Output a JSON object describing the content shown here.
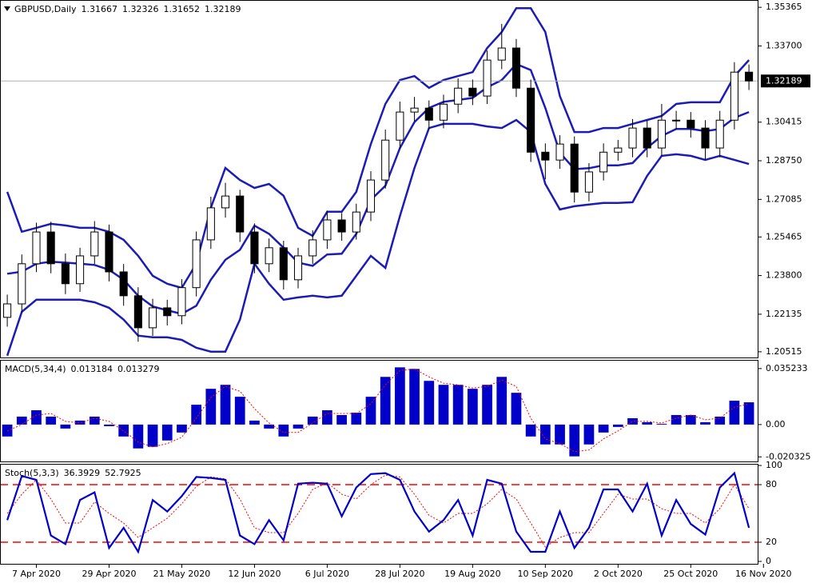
{
  "chart_data": [
    {
      "type": "candlestick",
      "title": "GBPUSD,Daily",
      "header_values": [
        1.31667,
        1.32326,
        1.31652,
        1.32189
      ],
      "open": [
        1.22,
        1.2258,
        1.2431,
        1.2568,
        1.2431,
        1.2345,
        1.2465,
        1.2568,
        1.2396,
        1.2293,
        1.2155,
        1.2241,
        1.2207,
        1.2328,
        1.2534,
        1.2672,
        1.2723,
        1.2568,
        1.2431,
        1.25,
        1.2362,
        1.2465,
        1.2534,
        1.262,
        1.2568,
        1.2654,
        1.2792,
        1.2964,
        1.3085,
        1.3102,
        1.305,
        1.3119,
        1.3188,
        1.3154,
        1.3309,
        1.3361,
        1.3188,
        1.2912,
        1.2878,
        1.2947,
        1.274,
        1.2827,
        1.2912,
        1.293,
        1.3016,
        1.293,
        1.305,
        1.305,
        1.3016,
        1.293,
        1.305,
        1.3257
      ],
      "high": [
        1.2298,
        1.2471,
        1.2608,
        1.2612,
        1.2475,
        1.25,
        1.2615,
        1.26,
        1.243,
        1.233,
        1.228,
        1.2276,
        1.2365,
        1.257,
        1.272,
        1.278,
        1.275,
        1.2605,
        1.254,
        1.253,
        1.25,
        1.2575,
        1.266,
        1.265,
        1.269,
        1.283,
        1.301,
        1.313,
        1.315,
        1.3135,
        1.316,
        1.323,
        1.3225,
        1.335,
        1.3465,
        1.34,
        1.3225,
        1.295,
        1.2985,
        1.298,
        1.2865,
        1.295,
        1.2965,
        1.3055,
        1.305,
        1.312,
        1.309,
        1.3085,
        1.305,
        1.309,
        1.33,
        1.329
      ],
      "low": [
        1.216,
        1.222,
        1.2395,
        1.239,
        1.23,
        1.231,
        1.243,
        1.2355,
        1.225,
        1.2095,
        1.212,
        1.2165,
        1.217,
        1.229,
        1.2495,
        1.263,
        1.2525,
        1.239,
        1.2395,
        1.232,
        1.2325,
        1.243,
        1.2495,
        1.253,
        1.2535,
        1.2615,
        1.2755,
        1.2925,
        1.3045,
        1.301,
        1.3015,
        1.308,
        1.3115,
        1.312,
        1.327,
        1.315,
        1.287,
        1.2795,
        1.284,
        1.2695,
        1.27,
        1.279,
        1.2875,
        1.289,
        1.289,
        1.2895,
        1.301,
        1.2975,
        1.288,
        1.289,
        1.301,
        1.318
      ],
      "close": [
        1.2258,
        1.2431,
        1.2568,
        1.2431,
        1.2345,
        1.2465,
        1.2568,
        1.2396,
        1.2293,
        1.2155,
        1.2241,
        1.2207,
        1.2328,
        1.2534,
        1.2672,
        1.2723,
        1.2568,
        1.2431,
        1.25,
        1.2362,
        1.2465,
        1.2534,
        1.262,
        1.2568,
        1.2654,
        1.2792,
        1.2964,
        1.3085,
        1.3102,
        1.305,
        1.3119,
        1.3188,
        1.3154,
        1.3309,
        1.3361,
        1.3188,
        1.2912,
        1.2878,
        1.2947,
        1.274,
        1.2827,
        1.2912,
        1.293,
        1.3016,
        1.293,
        1.305,
        1.305,
        1.3016,
        1.293,
        1.305,
        1.3257,
        1.3219
      ],
      "up_color": "#ffffff",
      "down_color": "#000000",
      "bands": {
        "color": "#1c1cb4",
        "upper": [
          1.2741,
          1.2569,
          1.2586,
          1.2603,
          1.2596,
          1.2586,
          1.2586,
          1.2569,
          1.2534,
          1.2465,
          1.2379,
          1.2345,
          1.2327,
          1.2431,
          1.2672,
          1.2844,
          1.2792,
          1.2758,
          1.2775,
          1.2724,
          1.2586,
          1.2551,
          1.2655,
          1.2655,
          1.2741,
          1.2947,
          1.312,
          1.3223,
          1.324,
          1.3189,
          1.3223,
          1.324,
          1.3257,
          1.3361,
          1.343,
          1.3533,
          1.3533,
          1.343,
          1.3154,
          1.2999,
          1.2999,
          1.3016,
          1.3016,
          1.3034,
          1.3051,
          1.3068,
          1.312,
          1.3127,
          1.3127,
          1.3127,
          1.324,
          1.3309
        ],
        "middle": [
          1.2388,
          1.2397,
          1.2431,
          1.244,
          1.2436,
          1.2431,
          1.2426,
          1.2405,
          1.2362,
          1.2293,
          1.2247,
          1.223,
          1.2215,
          1.225,
          1.2362,
          1.2448,
          1.2491,
          1.2595,
          1.256,
          1.25,
          1.2436,
          1.2422,
          1.2471,
          1.2474,
          1.256,
          1.2706,
          1.2767,
          1.293,
          1.3042,
          1.3103,
          1.3129,
          1.3137,
          1.3146,
          1.3192,
          1.3223,
          1.3292,
          1.3266,
          1.3103,
          1.291,
          1.2839,
          1.2843,
          1.2855,
          1.2855,
          1.2865,
          1.2931,
          1.2982,
          1.3012,
          1.3012,
          1.3003,
          1.3012,
          1.306,
          1.3085
        ],
        "lower": [
          1.2035,
          1.2224,
          1.2276,
          1.2276,
          1.2276,
          1.2276,
          1.2265,
          1.2241,
          1.219,
          1.2121,
          1.2114,
          1.2114,
          1.2103,
          1.2069,
          1.2052,
          1.2052,
          1.219,
          1.2431,
          1.2345,
          1.2276,
          1.2286,
          1.2293,
          1.2286,
          1.2293,
          1.2379,
          1.2465,
          1.2413,
          1.2637,
          1.2844,
          1.3016,
          1.3034,
          1.3034,
          1.3034,
          1.3023,
          1.3016,
          1.3051,
          1.2999,
          1.2775,
          1.2665,
          1.2679,
          1.2686,
          1.2693,
          1.2693,
          1.2696,
          1.281,
          1.2896,
          1.2903,
          1.2896,
          1.2879,
          1.2896,
          1.2879,
          1.2861
        ]
      },
      "price_line": 1.32189,
      "xlim": [
        -0.5,
        51.6
      ],
      "ylim": [
        1.2027,
        1.3568
      ],
      "yticks": [
        1.35365,
        {
          "value": 1.337,
          "label": "1.33700"
        },
        1.30415,
        {
          "value": 1.2875,
          "label": "1.28750"
        },
        1.27085,
        1.25465,
        {
          "value": 1.238,
          "label": "1.23800"
        },
        1.22135,
        1.20515
      ]
    },
    {
      "type": "macd",
      "title": "MACD(5,34,4)",
      "header_values": [
        0.013184,
        0.013279
      ],
      "values": [
        -0.0075,
        0.005,
        0.009,
        0.005,
        -0.0025,
        0.0025,
        0.005,
        -0.001,
        -0.0075,
        -0.015,
        -0.014,
        -0.01,
        -0.005,
        0.0125,
        0.0225,
        0.025,
        0.0175,
        0.0025,
        -0.0025,
        -0.0075,
        -0.0025,
        0.005,
        0.009,
        0.006,
        0.0075,
        0.0175,
        0.03,
        0.036,
        0.035,
        0.0275,
        0.025,
        0.025,
        0.0225,
        0.025,
        0.03,
        0.02,
        -0.0075,
        -0.0125,
        -0.0125,
        -0.02,
        -0.0125,
        -0.005,
        -0.0015,
        0.004,
        0.0015,
        0.0005,
        0.006,
        0.006,
        0.0015,
        0.005,
        0.015,
        0.014
      ],
      "color": "#0000c8",
      "signal": [
        -0.004,
        0.0,
        0.006,
        0.007,
        0.002,
        0.001,
        0.004,
        0.002,
        -0.004,
        -0.011,
        -0.014,
        -0.012,
        -0.008,
        0.004,
        0.017,
        0.024,
        0.021,
        0.01,
        0.001,
        -0.005,
        -0.005,
        0.001,
        0.007,
        0.007,
        0.007,
        0.013,
        0.025,
        0.034,
        0.035,
        0.03,
        0.026,
        0.025,
        0.023,
        0.024,
        0.028,
        0.024,
        0.004,
        -0.009,
        -0.012,
        -0.017,
        -0.016,
        -0.009,
        -0.004,
        0.002,
        0.002,
        0.001,
        0.004,
        0.006,
        0.003,
        0.004,
        0.011,
        0.013
      ],
      "signal_color": "#ff0000",
      "xlim": [
        -0.5,
        51.6
      ],
      "ylim": [
        -0.0232,
        0.0407
      ],
      "yticks": [
        0.035233,
        {
          "value": 0,
          "label": "0.00"
        },
        -0.020325
      ]
    },
    {
      "type": "stochastic",
      "title": "Stoch(5,3,3)",
      "header_values": [
        36.3929,
        52.7925
      ],
      "main": [
        43,
        89,
        85,
        27,
        18,
        64,
        72,
        14,
        35,
        10,
        64,
        52,
        68,
        88,
        87,
        85,
        27,
        18,
        43,
        22,
        81,
        82,
        81,
        47,
        77,
        91,
        92,
        85,
        52,
        31,
        43,
        64,
        27,
        85,
        81,
        31,
        10,
        10,
        52,
        14,
        35,
        75,
        75,
        52,
        81,
        27,
        64,
        39,
        28,
        77,
        92,
        35
      ],
      "color": "#0000c8",
      "signal": [
        50,
        70,
        85,
        65,
        40,
        40,
        62,
        50,
        40,
        25,
        35,
        45,
        60,
        78,
        88,
        86,
        65,
        35,
        30,
        30,
        50,
        75,
        82,
        70,
        65,
        80,
        90,
        88,
        70,
        48,
        40,
        50,
        50,
        60,
        75,
        65,
        40,
        15,
        25,
        30,
        30,
        50,
        70,
        65,
        65,
        55,
        50,
        50,
        40,
        55,
        80,
        55
      ],
      "signal_color": "#ff0000",
      "levels": [
        80,
        20
      ],
      "level_color": "#ff0000",
      "xlim": [
        -0.5,
        51.6
      ],
      "ylim": [
        -2.5,
        101.7
      ],
      "yticks": [
        100,
        80,
        20,
        0
      ],
      "xticks": [
        {
          "value": 2,
          "label": "7 Apr 2020"
        },
        {
          "value": 7,
          "label": "29 Apr 2020"
        },
        {
          "value": 12,
          "label": "21 May 2020"
        },
        {
          "value": 17,
          "label": "12 Jun 2020"
        },
        {
          "value": 22,
          "label": "6 Jul 2020"
        },
        {
          "value": 27,
          "label": "28 Jul 2020"
        },
        {
          "value": 32,
          "label": "19 Aug 2020"
        },
        {
          "value": 37,
          "label": "10 Sep 2020"
        },
        {
          "value": 42,
          "label": "2 Oct 2020"
        },
        {
          "value": 47,
          "label": "25 Oct 2020"
        },
        {
          "value": 52,
          "label": "16 Nov 2020"
        }
      ]
    }
  ]
}
